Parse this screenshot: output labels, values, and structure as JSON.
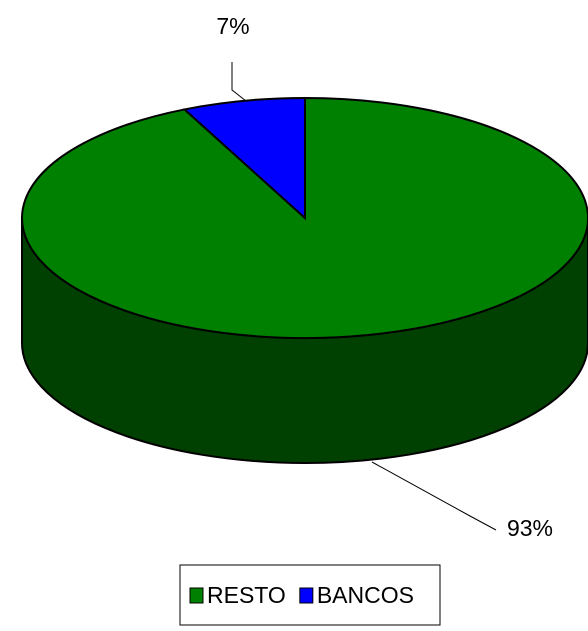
{
  "chart_data": {
    "type": "pie3d",
    "categories": [
      "RESTO",
      "BANCOS"
    ],
    "values": [
      93,
      7
    ],
    "value_labels": [
      "93%",
      "7%"
    ],
    "colors": [
      "#008000",
      "#0000ff"
    ],
    "side_colors": [
      "#004000",
      "#00007a"
    ],
    "legend": "bottom"
  }
}
